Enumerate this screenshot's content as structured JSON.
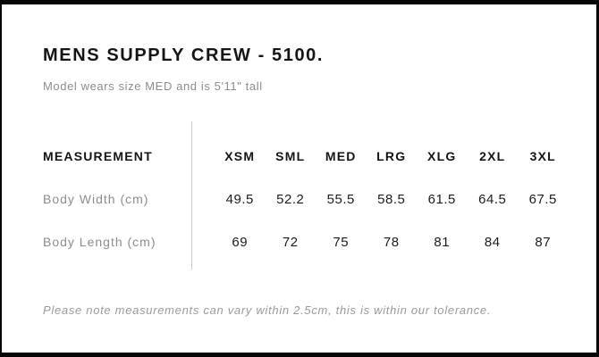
{
  "page": {
    "title": "MENS SUPPLY CREW - 5100.",
    "subtitle": "Model wears size MED and is 5'11\" tall",
    "note": "Please note measurements can vary within 2.5cm, this is within our tolerance."
  },
  "chart_data": {
    "type": "table",
    "title": "MENS SUPPLY CREW - 5100.",
    "subtitle": "Model wears size MED and is 5'11\" tall",
    "columns": [
      "MEASUREMENT",
      "XSM",
      "SML",
      "MED",
      "LRG",
      "XLG",
      "2XL",
      "3XL"
    ],
    "rows": [
      [
        "Body Width (cm)",
        49.5,
        52.2,
        55.5,
        58.5,
        61.5,
        64.5,
        67.5
      ],
      [
        "Body Length (cm)",
        69,
        72,
        75,
        78,
        81,
        84,
        87
      ]
    ],
    "note": "Please note measurements can vary within 2.5cm, this is within our tolerance."
  },
  "colors": {
    "frame_border": "#060606",
    "heading_text": "#151515",
    "muted_text": "#8d8d8d",
    "value_text": "#1c1c1c",
    "column_divider": "#cbcbcb"
  }
}
